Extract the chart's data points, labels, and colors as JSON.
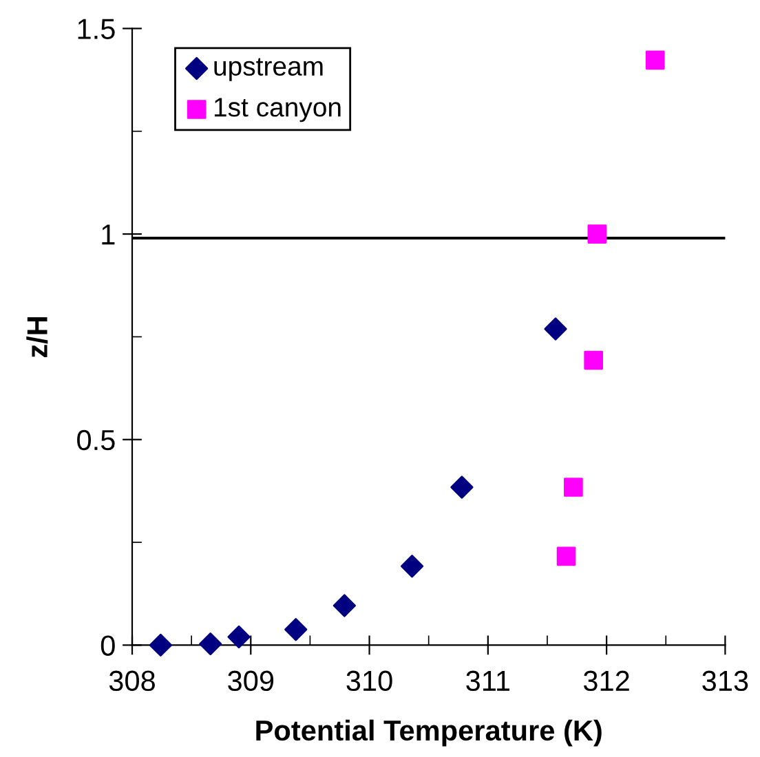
{
  "chart_data": {
    "type": "scatter",
    "xlabel": "Potential Temperature (K)",
    "ylabel": "z/H",
    "series": [
      {
        "name": "upstream",
        "color": "#000080",
        "marker": "diamond",
        "x": [
          308.24,
          308.66,
          308.9,
          309.38,
          309.79,
          310.36,
          310.78,
          311.57
        ],
        "values": [
          0,
          0.003,
          0.02,
          0.038,
          0.096,
          0.192,
          0.384,
          0.769
        ]
      },
      {
        "name": "1st canyon",
        "color": "#ff00ff",
        "marker": "square",
        "x": [
          311.66,
          311.72,
          311.89,
          311.92,
          312.41
        ],
        "values": [
          0.216,
          0.384,
          0.693,
          1.0,
          1.423
        ]
      }
    ],
    "xlim": [
      308,
      313
    ],
    "xticks": [
      308,
      {
        "value": 308.5,
        "label": null
      },
      309,
      {
        "value": 309.5,
        "label": null
      },
      310,
      {
        "value": 310.5,
        "label": null
      },
      311,
      {
        "value": 311.5,
        "label": null
      },
      312,
      {
        "value": 312.5,
        "label": null
      },
      313
    ],
    "ylim": [
      0,
      1.5
    ],
    "yticks": [
      0,
      {
        "value": 0.25,
        "label": null
      },
      0.5,
      {
        "value": 0.75,
        "label": null
      },
      1,
      {
        "value": 1.25,
        "label": null
      },
      1.5
    ],
    "ref_lines": [
      {
        "axis": "y",
        "value": 0.99,
        "color": "#000000"
      }
    ],
    "grid": false,
    "legend": "top left"
  }
}
